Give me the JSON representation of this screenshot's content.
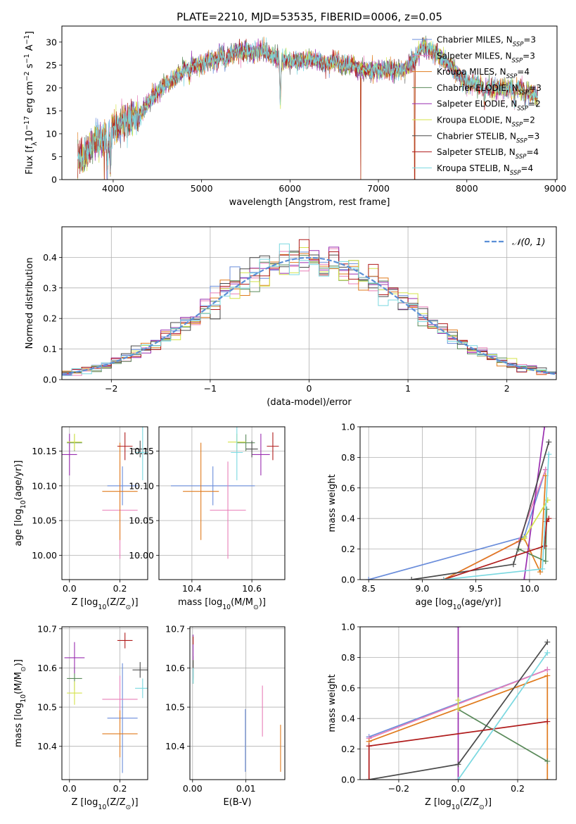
{
  "title": "PLATE=2210, MJD=53535, FIBERID=0006, z=0.05",
  "series_names": [
    "Chabrier MILES, N$_{SSP}$=3",
    "Salpeter MILES, N$_{SSP}$=3",
    "Kroupa MILES, N$_{SSP}$=4",
    "Chabrier ELODIE, N$_{SSP}$=3",
    "Salpeter ELODIE, N$_{SSP}$=2",
    "Kroupa ELODIE, N$_{SSP}$=2",
    "Chabrier STELIB, N$_{SSP}$=3",
    "Salpeter STELIB, N$_{SSP}$=4",
    "Kroupa STELIB, N$_{SSP}$=4"
  ],
  "series_labels": [
    {
      "pre": "Chabrier MILES, N",
      "sub": "SSP",
      "post": "=3"
    },
    {
      "pre": "Salpeter MILES, N",
      "sub": "SSP",
      "post": "=3"
    },
    {
      "pre": "Kroupa MILES, N",
      "sub": "SSP",
      "post": "=4"
    },
    {
      "pre": "Chabrier ELODIE, N",
      "sub": "SSP",
      "post": "=3"
    },
    {
      "pre": "Salpeter ELODIE, N",
      "sub": "SSP",
      "post": "=2"
    },
    {
      "pre": "Kroupa ELODIE, N",
      "sub": "SSP",
      "post": "=2"
    },
    {
      "pre": "Chabrier STELIB, N",
      "sub": "SSP",
      "post": "=3"
    },
    {
      "pre": "Salpeter STELIB, N",
      "sub": "SSP",
      "post": "=4"
    },
    {
      "pre": "Kroupa STELIB, N",
      "sub": "SSP",
      "post": "=4"
    }
  ],
  "series_colors": [
    "#6a8ddb",
    "#e87fb8",
    "#e07b1e",
    "#5a8a5a",
    "#9a2fb0",
    "#d4e34a",
    "#4a4a4a",
    "#b01c1c",
    "#7ad8e0"
  ],
  "chart_data": [
    {
      "id": "spectrum",
      "type": "line",
      "title": "PLATE=2210, MJD=53535, FIBERID=0006, z=0.05",
      "xlabel": "wavelength [Angstrom, rest frame]",
      "ylabel_parts": {
        "pre": "Flux [f",
        "lam": "λ",
        "mid": "10",
        "exp1": "−17",
        "rest": " erg cm",
        "exp2": "−2",
        "s": " s",
        "exp3": "−1",
        "a": " A",
        "exp4": "−1",
        "end": "]"
      },
      "xlim": [
        3420,
        9020
      ],
      "ylim": [
        0,
        33.5
      ],
      "xticks": [
        4000,
        5000,
        6000,
        7000,
        8000,
        9000
      ],
      "yticks": [
        0,
        5,
        10,
        15,
        20,
        25,
        30
      ],
      "legend": "top-right",
      "continuum_x": [
        3600,
        3700,
        3800,
        3900,
        4000,
        4100,
        4200,
        4300,
        4400,
        4500,
        4600,
        4700,
        4800,
        4900,
        5000,
        5100,
        5200,
        5300,
        5400,
        5500,
        5600,
        5700,
        5800,
        5900,
        6000,
        6100,
        6200,
        6300,
        6400,
        6500,
        6600,
        6700,
        6800,
        6900,
        7000,
        7100,
        7200,
        7300,
        7400,
        7500,
        7600,
        7700,
        7800,
        7900,
        8000,
        8100,
        8200,
        8300,
        8400,
        8500,
        8600,
        8700,
        8800
      ],
      "continuum_y": [
        4,
        6,
        8,
        9,
        11,
        12,
        13,
        14,
        17,
        19,
        21,
        22,
        24,
        25,
        25,
        26,
        27,
        27,
        28,
        28,
        28,
        28,
        27,
        26,
        26,
        26,
        26,
        26,
        25,
        26,
        25,
        25,
        24,
        24,
        24,
        24,
        24,
        24,
        26,
        29,
        28,
        27,
        25,
        23,
        21,
        21,
        20,
        20,
        20,
        20,
        20,
        19,
        18
      ],
      "features": [
        {
          "x": 3933,
          "y": 2
        },
        {
          "x": 3968,
          "y": 3
        },
        {
          "x": 4102,
          "y": 13
        },
        {
          "x": 4300,
          "y": 14
        },
        {
          "x": 4861,
          "y": 22
        },
        {
          "x": 5175,
          "y": 25
        },
        {
          "x": 5270,
          "y": 24
        },
        {
          "x": 5890,
          "y": 17
        },
        {
          "x": 6563,
          "y": 25
        },
        {
          "x": 8200,
          "y": 17
        },
        {
          "x": 8540,
          "y": 17
        },
        {
          "x": 8660,
          "y": 17
        }
      ],
      "dropouts": [
        {
          "x": 3900,
          "y": 0
        },
        {
          "x": 6800,
          "y": 0
        },
        {
          "x": 7410,
          "y": 0
        }
      ]
    },
    {
      "id": "residuals",
      "type": "histogram",
      "xlabel": "(data-model)/error",
      "ylabel": "Normed distribution",
      "xlim": [
        -2.5,
        2.5
      ],
      "ylim": [
        0,
        0.5
      ],
      "xticks": [
        -2,
        -1,
        0,
        1,
        2
      ],
      "yticks": [
        0.0,
        0.1,
        0.2,
        0.3,
        0.4
      ],
      "legend_label": "𝒩(0, 1)",
      "legend": "top-right",
      "bin_width": 0.1,
      "bin_start": -2.5
    },
    {
      "id": "age_vs_Z",
      "type": "scatter",
      "xlabel": "Z [log$_{10}$(Z/Z$_\\odot$)]",
      "ylabel": "age  [log$_{10}$(age/yr)]",
      "xlim": [
        -0.03,
        0.31
      ],
      "ylim": [
        9.965,
        10.185
      ],
      "xticks": [
        0.0,
        0.2
      ],
      "yticks": [
        10.0,
        10.05,
        10.1,
        10.15
      ],
      "points": [
        {
          "x": 0.21,
          "y": 10.1,
          "xerr": 0.06,
          "yerr": 0.028
        },
        {
          "x": 0.2,
          "y": 10.065,
          "xerr": 0.07,
          "yerr": 0.07
        },
        {
          "x": 0.2,
          "y": 10.092,
          "xerr": 0.07,
          "yerr": 0.07
        },
        {
          "x": 0.02,
          "y": 10.162,
          "xerr": 0.03,
          "yerr": 0.012
        },
        {
          "x": 0.0,
          "y": 10.145,
          "xerr": 0.03,
          "yerr": 0.03
        },
        {
          "x": 0.02,
          "y": 10.163,
          "xerr": 0.03,
          "yerr": 0.012
        },
        {
          "x": 0.28,
          "y": 10.153,
          "xerr": 0.03,
          "yerr": 0.012
        },
        {
          "x": 0.22,
          "y": 10.157,
          "xerr": 0.03,
          "yerr": 0.02
        },
        {
          "x": 0.29,
          "y": 10.148,
          "xerr": 0.03,
          "yerr": 0.04
        }
      ]
    },
    {
      "id": "age_vs_mass",
      "type": "scatter",
      "xlabel": "mass [log$_{10}$(M/M$_\\odot$)]",
      "xlim": [
        10.29,
        10.71
      ],
      "ylim": [
        9.965,
        10.185
      ],
      "xticks": [
        10.4,
        10.6
      ],
      "yticks": [
        10.0,
        10.05,
        10.1,
        10.15
      ],
      "points": [
        {
          "x": 10.47,
          "y": 10.1,
          "xerr": 0.14,
          "yerr": 0.028
        },
        {
          "x": 10.52,
          "y": 10.065,
          "xerr": 0.06,
          "yerr": 0.07
        },
        {
          "x": 10.43,
          "y": 10.092,
          "xerr": 0.06,
          "yerr": 0.07
        },
        {
          "x": 10.58,
          "y": 10.162,
          "xerr": 0.03,
          "yerr": 0.012
        },
        {
          "x": 10.63,
          "y": 10.145,
          "xerr": 0.03,
          "yerr": 0.03
        },
        {
          "x": 10.55,
          "y": 10.163,
          "xerr": 0.03,
          "yerr": 0.012
        },
        {
          "x": 10.6,
          "y": 10.153,
          "xerr": 0.02,
          "yerr": 0.012
        },
        {
          "x": 10.67,
          "y": 10.157,
          "xerr": 0.02,
          "yerr": 0.02
        },
        {
          "x": 10.55,
          "y": 10.148,
          "xerr": 0.02,
          "yerr": 0.04
        }
      ]
    },
    {
      "id": "weight_vs_age",
      "type": "line",
      "xlabel": "age  [log$_{10}$(age/yr)]",
      "ylabel": "mass weight",
      "xlim": [
        8.42,
        10.25
      ],
      "ylim": [
        0,
        1.0
      ],
      "xticks": [
        8.5,
        9.0,
        9.5,
        10.0
      ],
      "yticks": [
        0.0,
        0.2,
        0.4,
        0.6,
        0.8,
        1.0
      ],
      "series": [
        {
          "x": [
            8.5,
            9.95,
            10.15
          ],
          "y": [
            0.0,
            0.28,
            0.72
          ]
        },
        {
          "x": [
            9.2,
            9.9,
            10.15
          ],
          "y": [
            0.0,
            0.25,
            0.72
          ]
        },
        {
          "x": [
            9.2,
            9.95,
            10.1,
            10.15
          ],
          "y": [
            0.0,
            0.27,
            0.05,
            0.68
          ]
        },
        {
          "x": [
            9.9,
            10.15,
            10.16
          ],
          "y": [
            0.2,
            0.12,
            0.46
          ]
        },
        {
          "x": [
            9.95,
            10.14
          ],
          "y": [
            0.0,
            1.0
          ]
        },
        {
          "x": [
            9.95,
            10.17
          ],
          "y": [
            0.27,
            0.52
          ]
        },
        {
          "x": [
            8.9,
            9.85,
            10.18
          ],
          "y": [
            0.0,
            0.1,
            0.9
          ]
        },
        {
          "x": [
            9.2,
            10.14,
            10.16,
            10.18
          ],
          "y": [
            0.0,
            0.22,
            0.38,
            0.4
          ]
        },
        {
          "x": [
            9.2,
            10.12,
            10.18
          ],
          "y": [
            0.0,
            0.07,
            0.82
          ]
        }
      ]
    },
    {
      "id": "mass_vs_Z",
      "type": "scatter",
      "xlabel": "Z [log$_{10}$(Z/Z$_\\odot$)]",
      "ylabel": "mass [log$_{10}$(M/M$_\\odot$)]",
      "xlim": [
        -0.03,
        0.31
      ],
      "ylim": [
        10.315,
        10.705
      ],
      "xticks": [
        0.0,
        0.2
      ],
      "yticks": [
        10.4,
        10.5,
        10.6,
        10.7
      ],
      "points": [
        {
          "x": 0.21,
          "y": 10.472,
          "xerr": 0.06,
          "yerr": 0.14
        },
        {
          "x": 0.2,
          "y": 10.52,
          "xerr": 0.07,
          "yerr": 0.06
        },
        {
          "x": 0.2,
          "y": 10.432,
          "xerr": 0.07,
          "yerr": 0.06
        },
        {
          "x": 0.02,
          "y": 10.573,
          "xerr": 0.03,
          "yerr": 0.03
        },
        {
          "x": 0.02,
          "y": 10.626,
          "xerr": 0.04,
          "yerr": 0.04
        },
        {
          "x": 0.02,
          "y": 10.536,
          "xerr": 0.03,
          "yerr": 0.03
        },
        {
          "x": 0.28,
          "y": 10.595,
          "xerr": 0.03,
          "yerr": 0.02
        },
        {
          "x": 0.22,
          "y": 10.67,
          "xerr": 0.03,
          "yerr": 0.02
        },
        {
          "x": 0.29,
          "y": 10.548,
          "xerr": 0.03,
          "yerr": 0.025
        }
      ]
    },
    {
      "id": "mass_vs_ebv",
      "type": "scatter",
      "xlabel": "E(B-V)",
      "xlim": [
        -0.0005,
        0.0173
      ],
      "ylim": [
        10.315,
        10.705
      ],
      "xticks": [
        0.0,
        0.01
      ],
      "yticks": [
        10.4,
        10.5,
        10.6,
        10.7
      ],
      "points": [
        {
          "x": 0.0099,
          "y": 10.415,
          "xerr": 0,
          "yerr": 0.08
        },
        {
          "x": 0.0131,
          "y": 10.49,
          "xerr": 0,
          "yerr": 0.065
        },
        {
          "x": 0.0165,
          "y": 10.395,
          "xerr": 0,
          "yerr": 0.06
        },
        {
          "x": 0.0001,
          "y": 10.6,
          "xerr": 0,
          "yerr": 0.03
        },
        {
          "x": 0.0001,
          "y": 10.63,
          "xerr": 0,
          "yerr": 0.055
        },
        {
          "x": 0.0001,
          "y": 10.59,
          "xerr": 0,
          "yerr": 0.03
        },
        {
          "x": 0.0001,
          "y": 10.59,
          "xerr": 0,
          "yerr": 0.03
        },
        {
          "x": 0.0001,
          "y": 10.67,
          "xerr": 0,
          "yerr": 0.01
        },
        {
          "x": 0.0001,
          "y": 10.58,
          "xerr": 0,
          "yerr": 0.02
        }
      ]
    },
    {
      "id": "weight_vs_Z",
      "type": "line",
      "xlabel": "Z [log$_{10}$(Z/Z$_\\odot$)]",
      "ylabel": "mass weight",
      "xlim": [
        -0.33,
        0.33
      ],
      "ylim": [
        0,
        1.0
      ],
      "xticks": [
        -0.2,
        0.0,
        0.2
      ],
      "yticks": [
        0.0,
        0.2,
        0.4,
        0.6,
        0.8,
        1.0
      ],
      "series": [
        {
          "x": [
            -0.3,
            0.3
          ],
          "y": [
            0.28,
            0.72
          ]
        },
        {
          "x": [
            -0.3,
            0.3
          ],
          "y": [
            0.27,
            0.72
          ]
        },
        {
          "x": [
            -0.3,
            0.3,
            0.3
          ],
          "y": [
            0.25,
            0.68,
            0.0
          ]
        },
        {
          "x": [
            0.0,
            0.3
          ],
          "y": [
            0.46,
            0.12
          ]
        },
        {
          "x": [
            0.0,
            0.0
          ],
          "y": [
            0.0,
            1.0
          ]
        },
        {
          "x": [
            0.0,
            0.0
          ],
          "y": [
            0.46,
            0.52
          ]
        },
        {
          "x": [
            -0.3,
            0.0,
            0.3
          ],
          "y": [
            0.0,
            0.1,
            0.9
          ]
        },
        {
          "x": [
            -0.3,
            -0.3,
            0.3
          ],
          "y": [
            0.0,
            0.22,
            0.38
          ]
        },
        {
          "x": [
            0.0,
            0.3
          ],
          "y": [
            0.0,
            0.83
          ]
        }
      ]
    }
  ]
}
